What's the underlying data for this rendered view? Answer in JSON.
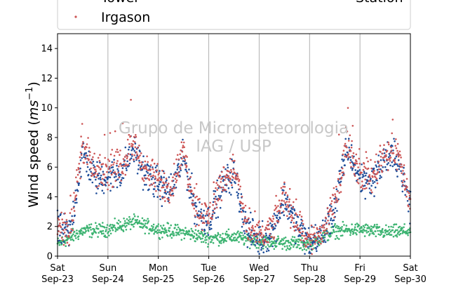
{
  "chart_data": {
    "type": "scatter",
    "title": "",
    "ylabel": "Wind speed (ms⁻¹)",
    "ylabel_main": "Wind speed (",
    "ylabel_unit": "ms",
    "ylabel_exp": "−1",
    "ylabel_close": ")",
    "xlabel": "",
    "ylim": [
      0,
      15
    ],
    "yticks": [
      0,
      2,
      4,
      6,
      8,
      10,
      12,
      14
    ],
    "xlim": [
      "2017-09-23",
      "2017-09-30"
    ],
    "xticks": [
      {
        "day": "Sat",
        "date": "Sep-23"
      },
      {
        "day": "Sun",
        "date": "Sep-24"
      },
      {
        "day": "Mon",
        "date": "Sep-25"
      },
      {
        "day": "Tue",
        "date": "Sep-26"
      },
      {
        "day": "Wed",
        "date": "Sep-27"
      },
      {
        "day": "Thu",
        "date": "Sep-28"
      },
      {
        "day": "Fri",
        "date": "Sep-29"
      },
      {
        "day": "Sat",
        "date": "Sep-30"
      }
    ],
    "grid": "vertical",
    "legend_position": "top",
    "legend": {
      "cut_left": "Tower",
      "main": "Irgason",
      "cut_right": "Station"
    },
    "watermark": [
      "Grupo de Micrometeorologia",
      "IAG / USP"
    ],
    "series": [
      {
        "name": "Irgason",
        "color": "#cd5555",
        "x_days": [
          0,
          0.25,
          0.5,
          0.75,
          1,
          1.25,
          1.5,
          1.75,
          2,
          2.25,
          2.5,
          2.75,
          3,
          3.25,
          3.5,
          3.75,
          4,
          4.25,
          4.5,
          4.75,
          5,
          5.25,
          5.5,
          5.75,
          6,
          6.25,
          6.5,
          6.75,
          7
        ],
        "values": [
          2.0,
          1.8,
          7.5,
          5.5,
          5.8,
          6.0,
          7.6,
          5.8,
          5.0,
          4.6,
          7.0,
          3.2,
          2.6,
          5.0,
          6.0,
          2.0,
          1.2,
          1.8,
          4.2,
          2.2,
          1.0,
          1.6,
          3.5,
          7.8,
          5.5,
          5.4,
          7.0,
          7.0,
          3.5
        ]
      },
      {
        "name": "Tower",
        "color": "#1f4e9a",
        "x_days": [
          0,
          0.25,
          0.5,
          0.75,
          1,
          1.25,
          1.5,
          1.75,
          2,
          2.25,
          2.5,
          2.75,
          3,
          3.25,
          3.5,
          3.75,
          4,
          4.25,
          4.5,
          4.75,
          5,
          5.25,
          5.5,
          5.75,
          6,
          6.25,
          6.5,
          6.75,
          7
        ],
        "values": [
          1.7,
          1.6,
          7.0,
          5.2,
          5.4,
          5.6,
          7.2,
          5.5,
          4.8,
          4.4,
          6.6,
          3.0,
          2.4,
          4.6,
          5.6,
          1.8,
          1.1,
          1.6,
          3.9,
          2.0,
          0.9,
          1.4,
          3.2,
          7.3,
          5.2,
          5.1,
          6.6,
          6.6,
          3.3
        ]
      },
      {
        "name": "Station",
        "color": "#3cb371",
        "x_days": [
          0,
          0.5,
          1,
          1.5,
          2,
          2.5,
          3,
          3.5,
          4,
          4.5,
          5,
          5.5,
          6,
          6.5,
          7
        ],
        "values": [
          0.8,
          1.7,
          1.8,
          2.3,
          1.8,
          1.6,
          1.2,
          1.3,
          1.0,
          0.9,
          0.8,
          1.7,
          1.8,
          1.6,
          1.7
        ]
      }
    ]
  }
}
